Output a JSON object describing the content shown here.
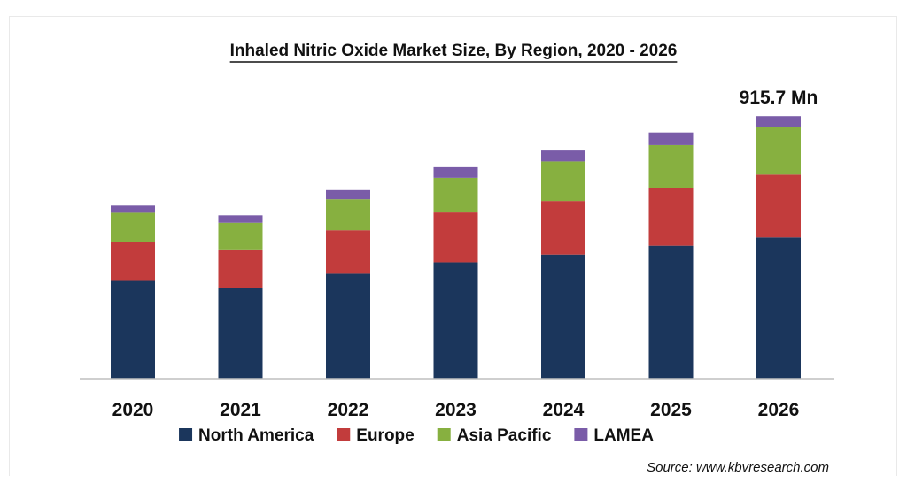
{
  "chart_data": {
    "type": "bar",
    "stacked": true,
    "title": "Inhaled Nitric Oxide Market Size, By Region, 2020 - 2026",
    "categories": [
      "2020",
      "2021",
      "2022",
      "2023",
      "2024",
      "2025",
      "2026"
    ],
    "series": [
      {
        "name": "North America",
        "color": "#1b365c",
        "values": [
          341,
          317,
          366,
          406,
          433,
          464,
          493
        ]
      },
      {
        "name": "Europe",
        "color": "#c23c3c",
        "values": [
          136,
          131,
          152,
          174,
          187,
          202,
          219
        ]
      },
      {
        "name": "Asia Pacific",
        "color": "#87b040",
        "values": [
          102,
          96,
          108,
          121,
          138,
          149,
          165
        ]
      },
      {
        "name": "LAMEA",
        "color": "#7a5ca8",
        "values": [
          25,
          26,
          32,
          37,
          38,
          44,
          39
        ]
      }
    ],
    "annotations": [
      {
        "category": "2026",
        "text": "915.7 Mn"
      }
    ],
    "xlabel": "",
    "ylabel": "",
    "ylim": [
      0,
      1000
    ],
    "y_axis_visible": false,
    "grid": false,
    "legend_position": "bottom",
    "source": "Source: www.kbvresearch.com"
  }
}
